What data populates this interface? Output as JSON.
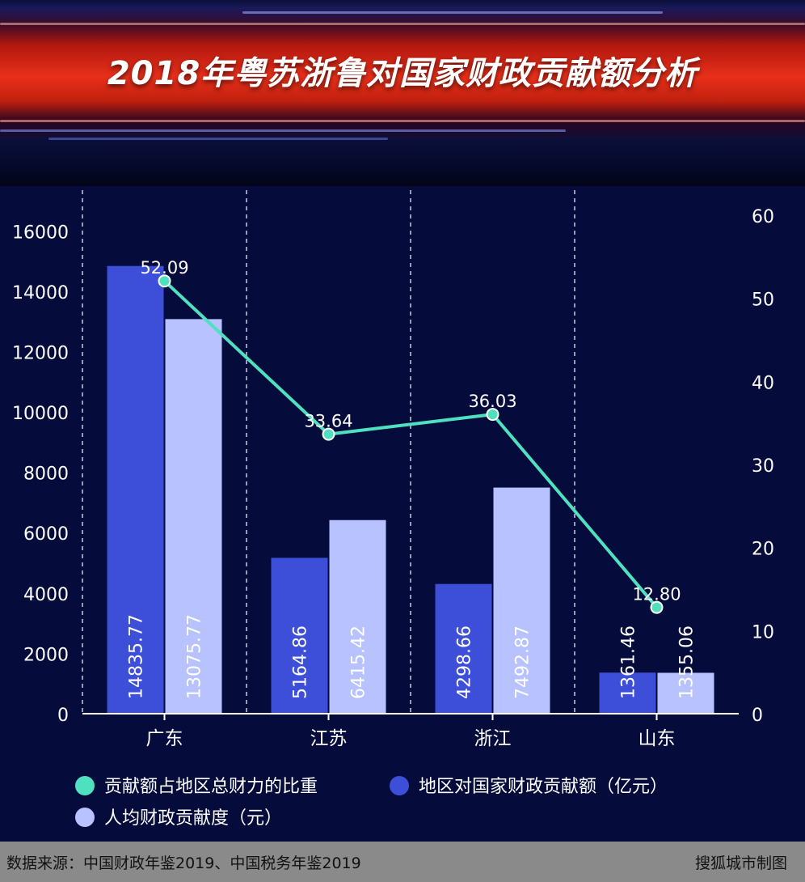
{
  "header": {
    "title": "2018年粤苏浙鲁对国家财政贡献额分析"
  },
  "chart_data": {
    "type": "bar",
    "categories": [
      "广东",
      "江苏",
      "浙江",
      "山东"
    ],
    "y_left": {
      "min": 0,
      "max": 17000,
      "ticks": [
        0,
        2000,
        4000,
        6000,
        8000,
        10000,
        12000,
        14000,
        16000
      ]
    },
    "y_right": {
      "min": 0,
      "max": 60,
      "ticks": [
        0,
        10,
        20,
        30,
        40,
        50,
        60
      ]
    },
    "series": [
      {
        "name": "地区对国家财政贡献额（亿元）",
        "type": "bar",
        "axis": "left",
        "color": "#3d4fd8",
        "values": [
          14835.77,
          5164.86,
          4298.66,
          1361.46
        ],
        "labels": [
          "14835.77",
          "5164.86",
          "4298.66",
          "1361.46"
        ]
      },
      {
        "name": "人均财政贡献度（元）",
        "type": "bar",
        "axis": "left",
        "color": "#b7c2ff",
        "values": [
          13075.77,
          6415.42,
          7492.87,
          1355.06
        ],
        "labels": [
          "13075.77",
          "6415.42",
          "7492.87",
          "1355.06"
        ]
      },
      {
        "name": "贡献额占地区总财力的比重",
        "type": "line",
        "axis": "right",
        "color": "#4fe0c0",
        "values": [
          52.09,
          33.64,
          36.03,
          12.8
        ],
        "labels": [
          "52.09",
          "33.64",
          "36.03",
          "12.80"
        ]
      }
    ],
    "legend_order": [
      2,
      0,
      1
    ]
  },
  "footer": {
    "source": "数据来源：中国财政年鉴2019、中国税务年鉴2019",
    "maker": "搜狐城市制图"
  }
}
